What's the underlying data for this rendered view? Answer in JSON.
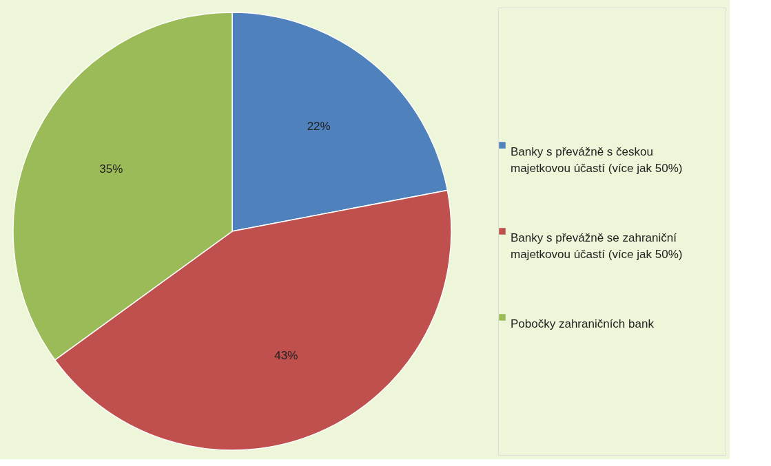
{
  "chart_data": {
    "type": "pie",
    "categories": [
      "Banky s převážně s českou majetkovou účastí (více jak 50%)",
      "Banky s převážně se zahraniční majetkovou účastí (více jak 50%)",
      "Pobočky zahraničních bank"
    ],
    "values": [
      22,
      43,
      35
    ],
    "colors": [
      "#4f81bd",
      "#c0504d",
      "#9bbb59"
    ],
    "value_labels": [
      "22%",
      "43%",
      "35%"
    ],
    "legend": "right"
  }
}
